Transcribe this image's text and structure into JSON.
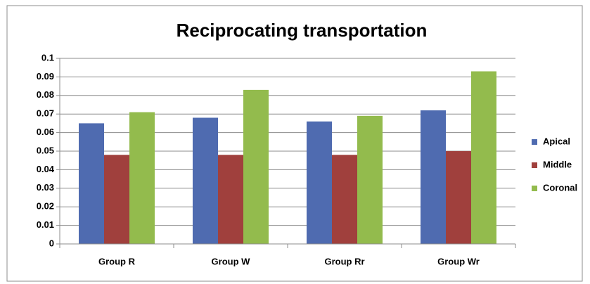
{
  "chart_data": {
    "type": "bar",
    "title": "Reciprocating transportation",
    "categories": [
      "Group R",
      "Group W",
      "Group Rr",
      "Group Wr"
    ],
    "series": [
      {
        "name": "Apical",
        "color": "#4f6bb0",
        "values": [
          0.065,
          0.068,
          0.066,
          0.072
        ]
      },
      {
        "name": "Middle",
        "color": "#a0403d",
        "values": [
          0.048,
          0.048,
          0.048,
          0.05
        ]
      },
      {
        "name": "Coronal",
        "color": "#93bb4d",
        "values": [
          0.071,
          0.083,
          0.069,
          0.093
        ]
      }
    ],
    "ylim": [
      0,
      0.1
    ],
    "yticks": [
      0,
      0.01,
      0.02,
      0.03,
      0.04,
      0.05,
      0.06,
      0.07,
      0.08,
      0.09,
      0.1
    ],
    "grid": true,
    "legend": "right"
  }
}
